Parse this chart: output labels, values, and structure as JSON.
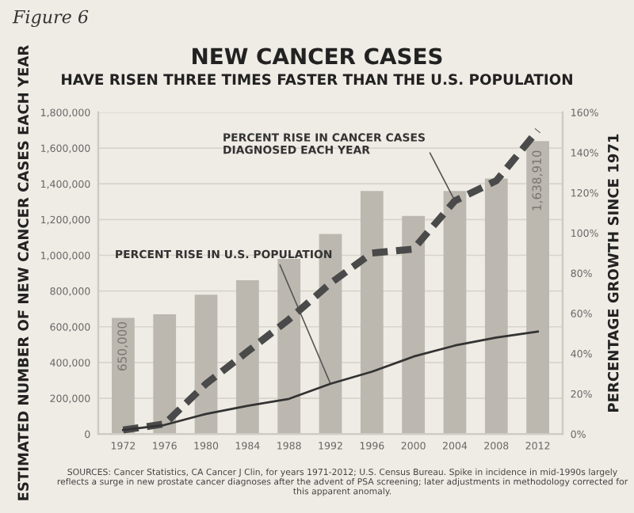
{
  "chart_data": {
    "type": "bar",
    "title": "NEW CANCER CASES",
    "subtitle": "HAVE RISEN THREE TIMES FASTER THAN THE U.S. POPULATION",
    "ylabel": "ESTIMATED NUMBER OF NEW CANCER CASES EACH YEAR",
    "y2label": "PERCENTAGE GROWTH SINCE 1971",
    "categories": [
      "1972",
      "1976",
      "1980",
      "1984",
      "1988",
      "1992",
      "1996",
      "2000",
      "2004",
      "2008",
      "2012"
    ],
    "series": [
      {
        "color": "#bcb8b0",
        "values": [
          650000,
          670000,
          780000,
          860000,
          980000,
          1120000,
          1360000,
          1220000,
          1360000,
          1430000,
          1638910
        ],
        "value_labels": [
          "650,000",
          null,
          null,
          null,
          null,
          null,
          null,
          null,
          null,
          null,
          "1,638,910"
        ]
      },
      {
        "type": "line",
        "axis": "y2",
        "color": "#4a4a4a",
        "line_style": "dashed",
        "values": [
          2,
          5,
          25,
          41,
          57,
          75,
          90,
          92,
          116,
          126,
          151
        ]
      },
      {
        "type": "line",
        "axis": "y2",
        "color": "#333333",
        "line_style": "solid",
        "values": [
          2,
          4.5,
          10,
          14,
          17.5,
          25,
          31,
          38.5,
          44,
          48,
          51
        ]
      }
    ],
    "ylim": [
      0,
      1800000
    ],
    "yticks": [
      {
        "value": 0,
        "label": "0"
      },
      {
        "value": 200000,
        "label": "200,000"
      },
      {
        "value": 400000,
        "label": "400,000"
      },
      {
        "value": 600000,
        "label": "600,000"
      },
      {
        "value": 800000,
        "label": "800,000"
      },
      {
        "value": 1000000,
        "label": "1,000,000"
      },
      {
        "value": 1200000,
        "label": "1,200,000"
      },
      {
        "value": 1400000,
        "label": "1,400,000"
      },
      {
        "value": 1600000,
        "label": "1,600,000"
      },
      {
        "value": 1800000,
        "label": "1,800,000"
      }
    ],
    "y2lim": [
      0,
      160
    ],
    "y2ticks": [
      {
        "value": 0,
        "label": "0%"
      },
      {
        "value": 20,
        "label": "20%"
      },
      {
        "value": 40,
        "label": "40%"
      },
      {
        "value": 60,
        "label": "60%"
      },
      {
        "value": 80,
        "label": "80%"
      },
      {
        "value": 100,
        "label": "100%"
      },
      {
        "value": 120,
        "label": "120%"
      },
      {
        "value": 140,
        "label": "140%"
      },
      {
        "value": 160,
        "label": "160%"
      }
    ],
    "grid": "y",
    "legend": false,
    "marker": "none",
    "annotations": [
      "Figure 6",
      {
        "text": "PERCENT RISE IN CANCER CASES\nDIAGNOSED EACH YEAR",
        "x": "2004",
        "y": 1305000
      },
      {
        "text": "PERCENT RISE IN U.S. POPULATION",
        "x": "1992",
        "y": 281000
      },
      "SOURCES: Cancer Statistics, CA Cancer J Clin, for years 1971-2012; U.S. Census Bureau. Spike in incidence in mid-1990s largely reflects a surge in new prostate cancer diagnoses after the advent of PSA screening; later adjustments in methodology corrected for this apparent anomaly."
    ]
  }
}
